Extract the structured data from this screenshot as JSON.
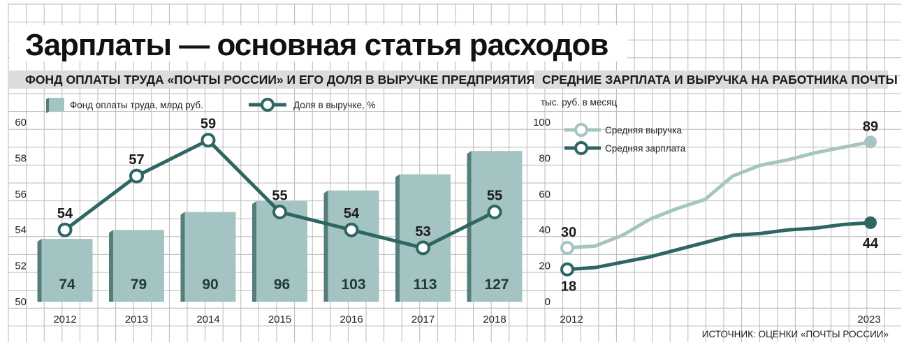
{
  "title": "Зарплаты — основная статья расходов",
  "source": "ИСТОЧНИК: ОЦЕНКИ «ПОЧТЫ РОССИИ»",
  "colors": {
    "bar": "#a3c4c2",
    "bar_side": "#557e7b",
    "line_dark": "#2e6663",
    "line_light": "#a5c4c2",
    "grid": "#b8b8b8",
    "header_band": "#dcdcdc"
  },
  "chart_data": [
    {
      "type": "bar+line",
      "title": "ФОНД ОПЛАТЫ ТРУДА «ПОЧТЫ РОССИИ» И ЕГО ДОЛЯ В ВЫРУЧКЕ ПРЕДПРИЯТИЯ",
      "categories": [
        "2012",
        "2013",
        "2014",
        "2015",
        "2016",
        "2017",
        "2018"
      ],
      "series": [
        {
          "name": "Фонд оплаты труда, млрд руб.",
          "kind": "bar",
          "values": [
            74,
            79,
            90,
            96,
            103,
            113,
            127
          ]
        },
        {
          "name": "Доля в выручке, %",
          "kind": "line",
          "values": [
            54,
            57,
            59,
            55,
            54,
            53,
            55
          ]
        }
      ],
      "y_ticks": [
        "60",
        "58",
        "56",
        "54",
        "52",
        "50"
      ],
      "ylim": [
        50,
        60
      ],
      "bar_tops_in_axis_units": [
        53.5,
        54,
        55,
        55.6,
        56.2,
        57.1,
        58.4
      ],
      "legend_position": "top-left",
      "grid": true
    },
    {
      "type": "line",
      "title": "СРЕДНИЕ ЗАРПЛАТА И ВЫРУЧКА НА РАБОТНИКА ПОЧТЫ",
      "unit": "тыс. руб. в месяц",
      "x_labels": [
        "2012",
        "2023"
      ],
      "x": [
        2012,
        2013,
        2014,
        2015,
        2016,
        2017,
        2018,
        2019,
        2020,
        2021,
        2022,
        2023
      ],
      "series": [
        {
          "name": "Средняя выручка",
          "color": "#a5c4c2",
          "values": [
            30,
            31,
            37,
            46,
            52,
            57,
            70,
            76,
            79,
            83,
            86,
            89
          ],
          "labels": [
            "30",
            "89"
          ]
        },
        {
          "name": "Средняя зарплата",
          "color": "#2e6663",
          "values": [
            18,
            19,
            22,
            25,
            29,
            33,
            37,
            38,
            40,
            41,
            43,
            44
          ],
          "labels": [
            "18",
            "44"
          ]
        }
      ],
      "y_ticks": [
        "100",
        "80",
        "60",
        "40",
        "20",
        "0"
      ],
      "ylim": [
        0,
        100
      ],
      "legend_position": "top-left",
      "grid": true
    }
  ]
}
